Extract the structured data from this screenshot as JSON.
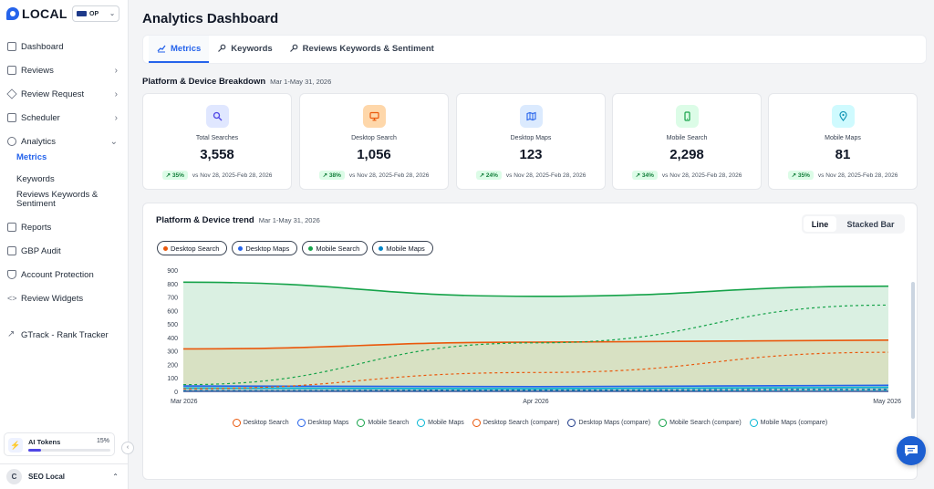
{
  "brand": {
    "name": "LOCAL",
    "workspace": "OP"
  },
  "sidebar": {
    "items": [
      {
        "label": "Dashboard",
        "chevron": false
      },
      {
        "label": "Reviews",
        "chevron": true
      },
      {
        "label": "Review Request",
        "chevron": true
      },
      {
        "label": "Scheduler",
        "chevron": true
      },
      {
        "label": "Analytics",
        "chevron": true,
        "expanded": true
      }
    ],
    "analytics_sub": [
      "Metrics",
      "Keywords",
      "Reviews Keywords & Sentiment"
    ],
    "lower_items": [
      "Reports",
      "GBP Audit",
      "Account Protection",
      "Review Widgets"
    ],
    "tracker": "GTrack - Rank Tracker",
    "tokens": {
      "label": "AI Tokens",
      "percent": "15%",
      "fill": 0.15
    },
    "user": {
      "initial": "C",
      "name": "SEO Local"
    }
  },
  "header": {
    "title": "Analytics Dashboard"
  },
  "tabs": [
    {
      "label": "Metrics",
      "icon": "chart-line-icon",
      "active": true
    },
    {
      "label": "Keywords",
      "icon": "key-icon",
      "active": false
    },
    {
      "label": "Reviews Keywords & Sentiment",
      "icon": "key-icon",
      "active": false
    }
  ],
  "breakdown": {
    "title": "Platform & Device Breakdown",
    "date": "Mar 1-May 31, 2026",
    "cards": [
      {
        "label": "Total Searches",
        "value": "3,558",
        "change": "35%",
        "compare": "vs Nov 28, 2025-Feb 28, 2026",
        "icon": "search-icon",
        "bg": "#e0e7ff",
        "fg": "#4f46e5"
      },
      {
        "label": "Desktop Search",
        "value": "1,056",
        "change": "38%",
        "compare": "vs Nov 28, 2025-Feb 28, 2026",
        "icon": "monitor-icon",
        "bg": "#fed7aa",
        "fg": "#ea580c"
      },
      {
        "label": "Desktop Maps",
        "value": "123",
        "change": "24%",
        "compare": "vs Nov 28, 2025-Feb 28, 2026",
        "icon": "map-icon",
        "bg": "#dbeafe",
        "fg": "#2563eb"
      },
      {
        "label": "Mobile Search",
        "value": "2,298",
        "change": "34%",
        "compare": "vs Nov 28, 2025-Feb 28, 2026",
        "icon": "phone-icon",
        "bg": "#dcfce7",
        "fg": "#16a34a"
      },
      {
        "label": "Mobile Maps",
        "value": "81",
        "change": "35%",
        "compare": "vs Nov 28, 2025-Feb 28, 2026",
        "icon": "map-pin-icon",
        "bg": "#cffafe",
        "fg": "#0891b2"
      }
    ]
  },
  "trend": {
    "title": "Platform & Device trend",
    "date": "Mar 1-May 31, 2026",
    "toggle": [
      "Line",
      "Stacked Bar"
    ],
    "chips": [
      {
        "label": "Desktop Search",
        "color": "#ea580c"
      },
      {
        "label": "Desktop Maps",
        "color": "#2563eb"
      },
      {
        "label": "Mobile Search",
        "color": "#16a34a"
      },
      {
        "label": "Mobile Maps",
        "color": "#0284c7"
      }
    ],
    "legend": [
      {
        "label": "Desktop Search",
        "color": "#ea580c"
      },
      {
        "label": "Desktop Maps",
        "color": "#2563eb"
      },
      {
        "label": "Mobile Search",
        "color": "#16a34a"
      },
      {
        "label": "Mobile Maps",
        "color": "#06b6d4"
      },
      {
        "label": "Desktop Search (compare)",
        "color": "#ea580c"
      },
      {
        "label": "Desktop Maps (compare)",
        "color": "#1e3a8a"
      },
      {
        "label": "Mobile Search (compare)",
        "color": "#16a34a"
      },
      {
        "label": "Mobile Maps (compare)",
        "color": "#06b6d4"
      }
    ]
  },
  "chart_data": {
    "type": "area",
    "x": [
      "Mar 2026",
      "Apr 2026",
      "May 2026"
    ],
    "ylim": [
      0,
      900
    ],
    "yticks": [
      0,
      100,
      200,
      300,
      400,
      500,
      600,
      700,
      800,
      900
    ],
    "grid": false,
    "series": [
      {
        "name": "Mobile Search",
        "values": [
          810,
          705,
          780
        ],
        "color": "#16a34a",
        "style": "solid"
      },
      {
        "name": "Desktop Search",
        "values": [
          315,
          365,
          380
        ],
        "color": "#ea580c",
        "style": "solid"
      },
      {
        "name": "Desktop Maps",
        "values": [
          40,
          35,
          45
        ],
        "color": "#2563eb",
        "style": "solid"
      },
      {
        "name": "Mobile Maps",
        "values": [
          25,
          20,
          30
        ],
        "color": "#06b6d4",
        "style": "solid"
      },
      {
        "name": "Mobile Search (compare)",
        "values": [
          50,
          360,
          640
        ],
        "color": "#16a34a",
        "style": "dashed"
      },
      {
        "name": "Desktop Search (compare)",
        "values": [
          20,
          140,
          290
        ],
        "color": "#ea580c",
        "style": "dashed"
      },
      {
        "name": "Desktop Maps (compare)",
        "values": [
          5,
          10,
          15
        ],
        "color": "#1e3a8a",
        "style": "dashed"
      },
      {
        "name": "Mobile Maps (compare)",
        "values": [
          3,
          6,
          10
        ],
        "color": "#06b6d4",
        "style": "dashed"
      }
    ]
  }
}
